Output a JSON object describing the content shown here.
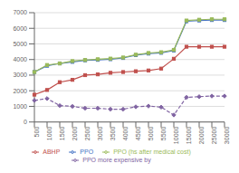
{
  "chart_data": {
    "type": "line",
    "categories": [
      "500",
      "1000",
      "1500",
      "2000",
      "2500",
      "3000",
      "3500",
      "4000",
      "4500",
      "5000",
      "5500",
      "10000",
      "15000",
      "20000",
      "25000",
      "30000"
    ],
    "series": [
      {
        "name": "PPO",
        "color": "#4472c4",
        "marker": "square",
        "line_style": "solid",
        "values": [
          3200,
          3600,
          3750,
          3850,
          3950,
          3980,
          4020,
          4100,
          4280,
          4380,
          4430,
          4580,
          6450,
          6500,
          6530,
          6530
        ]
      },
      {
        "name": "ABHP",
        "color": "#c0504d",
        "marker": "square",
        "line_style": "solid",
        "values": [
          1750,
          2050,
          2550,
          2700,
          3000,
          3050,
          3150,
          3200,
          3250,
          3300,
          3420,
          4050,
          4820,
          4820,
          4820,
          4820
        ]
      },
      {
        "name": "PPO (hs after medical cost)",
        "color": "#9bbb59",
        "marker": "square",
        "line_style": "solid",
        "values": [
          3200,
          3650,
          3750,
          3900,
          3970,
          4020,
          4060,
          4130,
          4310,
          4420,
          4470,
          4620,
          6500,
          6550,
          6580,
          6580
        ]
      },
      {
        "name": "PPO more expensive by",
        "color": "#8064a2",
        "marker": "diamond",
        "line_style": "dashed",
        "values": [
          1380,
          1500,
          1050,
          1000,
          880,
          880,
          820,
          820,
          970,
          1020,
          950,
          450,
          1580,
          1620,
          1660,
          1660
        ]
      }
    ],
    "ylim": [
      0,
      7000
    ],
    "yticks": [
      0,
      1000,
      2000,
      3000,
      4000,
      5000,
      6000,
      7000
    ],
    "grid": "y",
    "legend": "bottom"
  }
}
